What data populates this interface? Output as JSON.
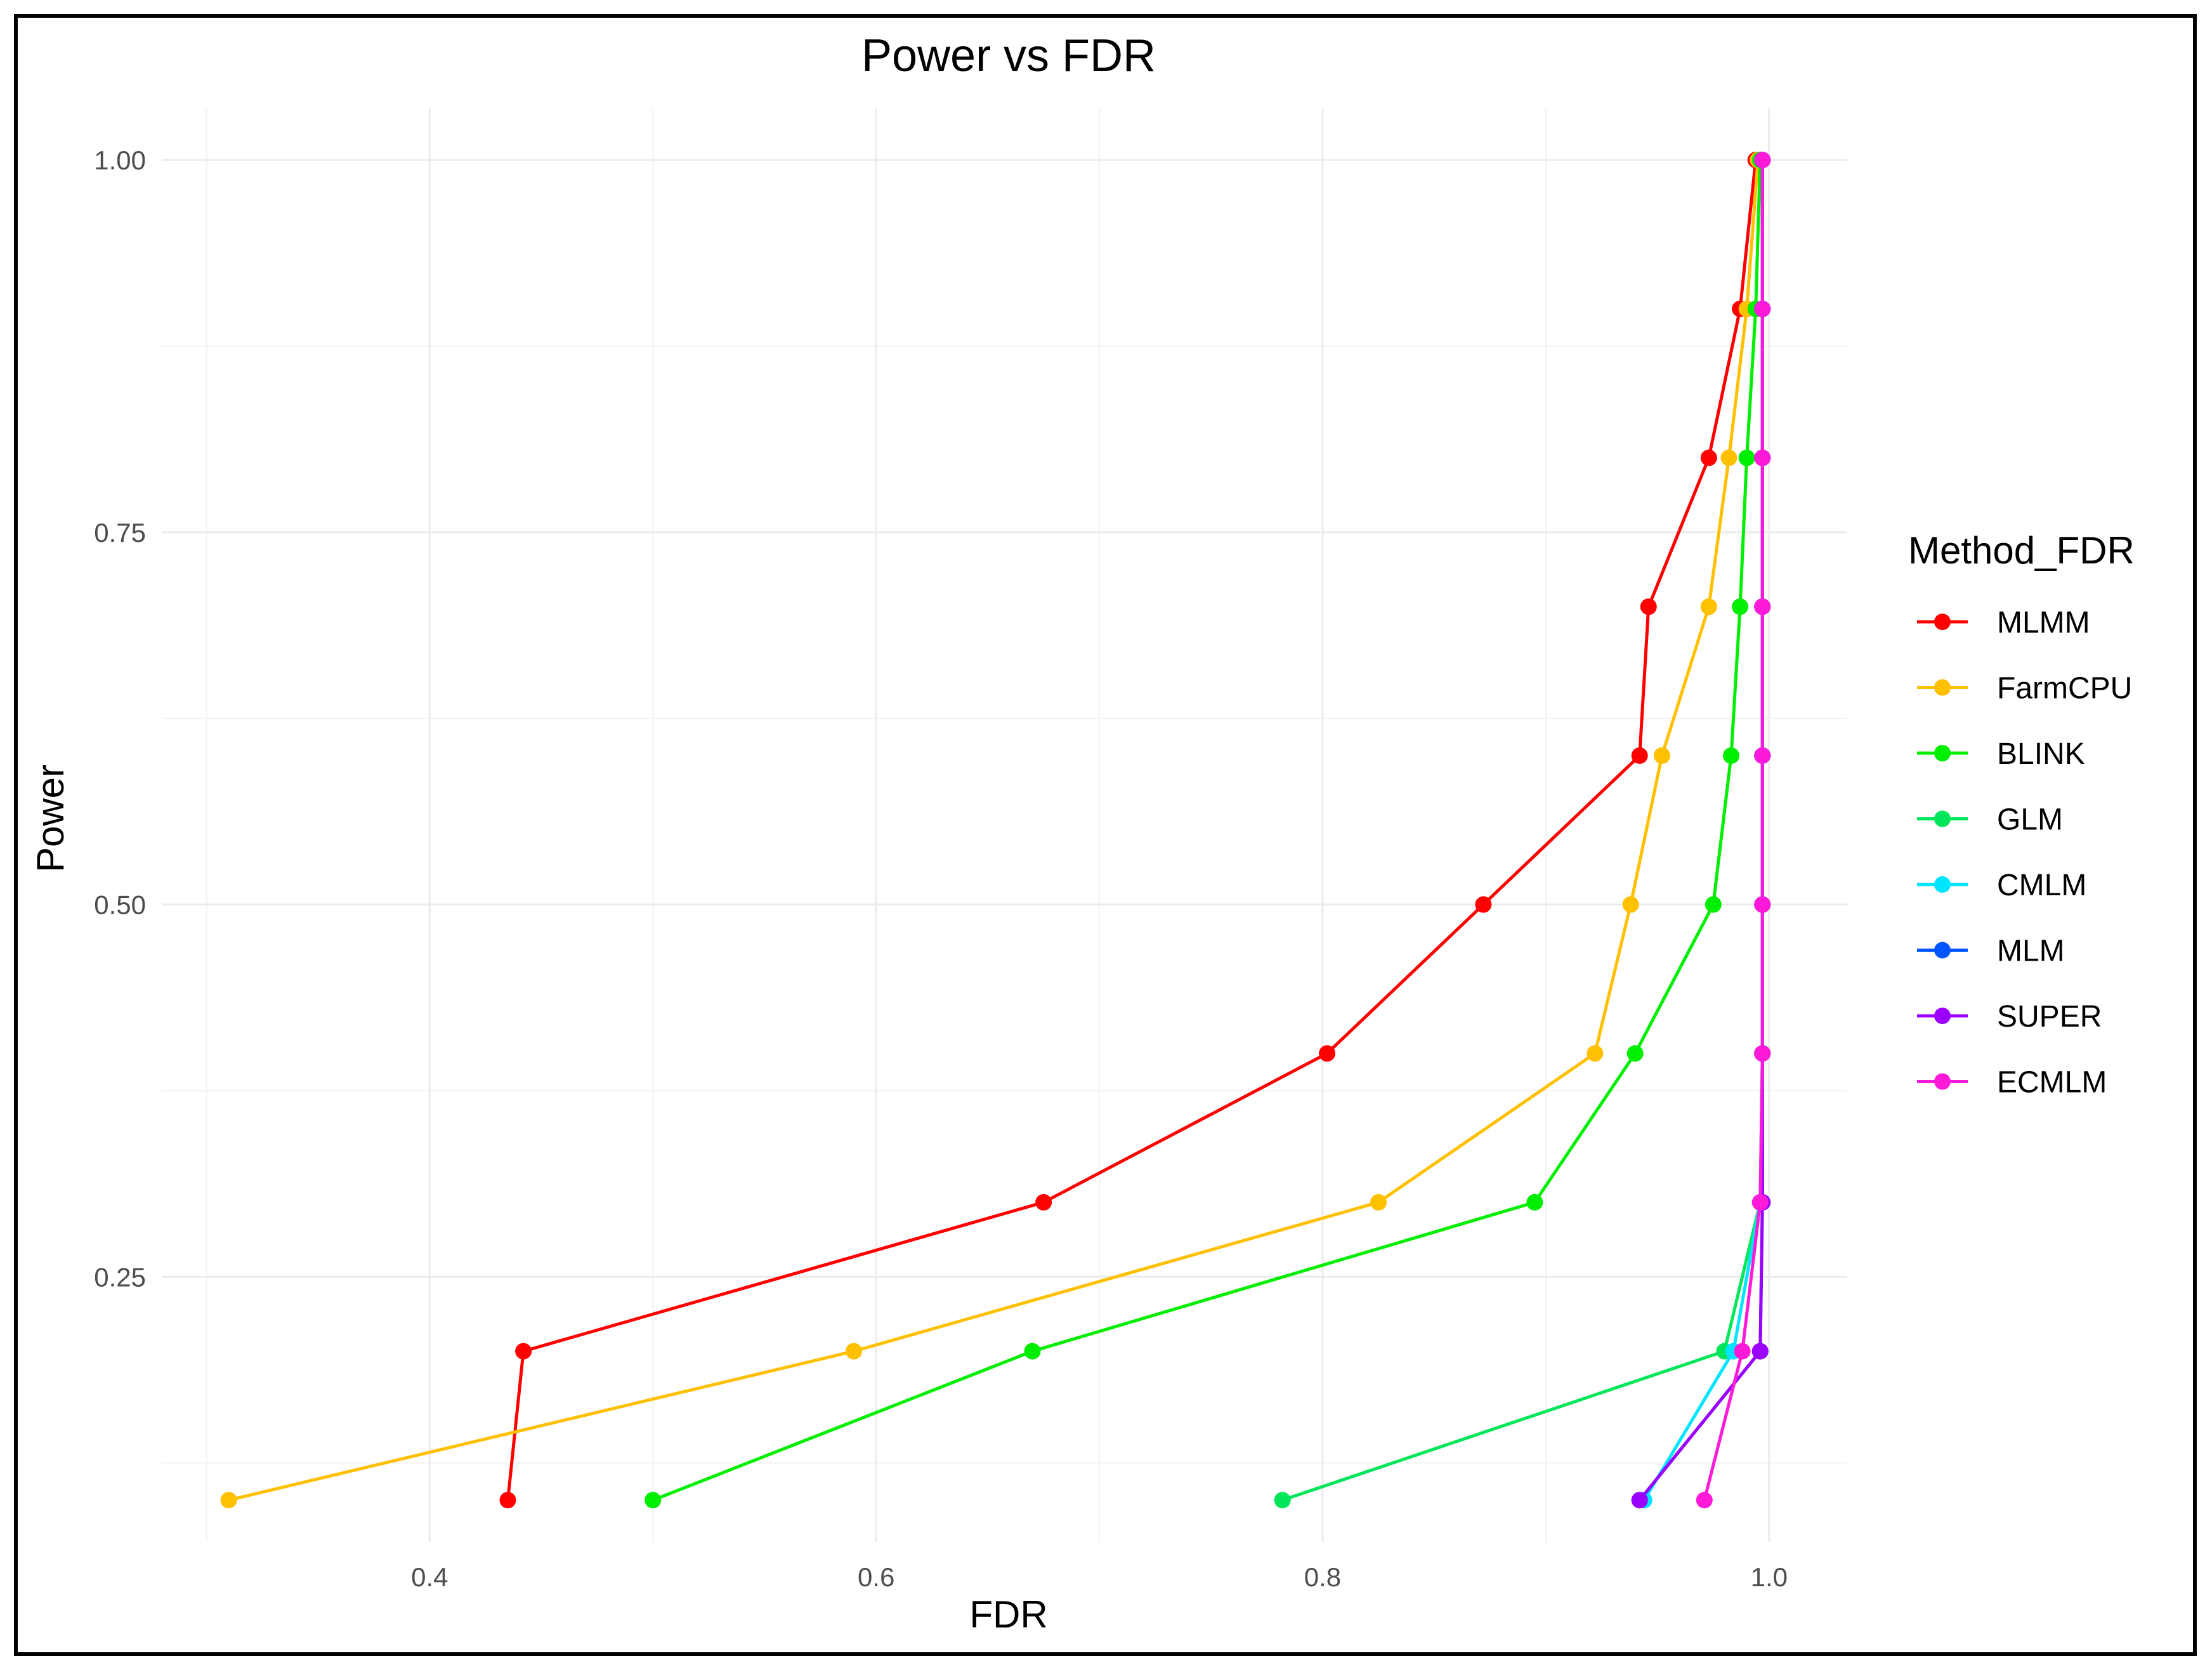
{
  "chart_data": {
    "type": "line",
    "title": "Power vs FDR",
    "xlabel": "FDR",
    "ylabel": "Power",
    "xlim": [
      0.28,
      1.035
    ],
    "ylim": [
      0.072,
      1.035
    ],
    "x_major_ticks": [
      0.4,
      0.6,
      0.8,
      1.0
    ],
    "x_minor_ticks": [
      0.3,
      0.5,
      0.7,
      0.9
    ],
    "y_major_ticks": [
      0.25,
      0.5,
      0.75,
      1.0
    ],
    "y_minor_ticks": [
      0.125,
      0.375,
      0.625,
      0.875
    ],
    "x_tick_labels": [
      "0.4",
      "0.6",
      "0.8",
      "1.0"
    ],
    "y_tick_labels": [
      "0.25",
      "0.50",
      "0.75",
      "1.00"
    ],
    "grid": true,
    "legend_position": "right",
    "legend_title": "Method_FDR",
    "series": [
      {
        "name": "MLMM",
        "color": "#ff0000",
        "x": [
          0.435,
          0.442,
          0.675,
          0.802,
          0.872,
          0.942,
          0.946,
          0.973,
          0.987,
          0.994
        ],
        "y": [
          0.1,
          0.2,
          0.3,
          0.4,
          0.5,
          0.6,
          0.7,
          0.8,
          0.9,
          1.0
        ]
      },
      {
        "name": "FarmCPU",
        "color": "#ffc000",
        "x": [
          0.31,
          0.59,
          0.825,
          0.922,
          0.938,
          0.952,
          0.973,
          0.982,
          0.99,
          0.995
        ],
        "y": [
          0.1,
          0.2,
          0.3,
          0.4,
          0.5,
          0.6,
          0.7,
          0.8,
          0.9,
          1.0
        ]
      },
      {
        "name": "BLINK",
        "color": "#00ee00",
        "x": [
          0.5,
          0.67,
          0.895,
          0.94,
          0.975,
          0.983,
          0.987,
          0.99,
          0.994,
          0.996
        ],
        "y": [
          0.1,
          0.2,
          0.3,
          0.4,
          0.5,
          0.6,
          0.7,
          0.8,
          0.9,
          1.0
        ]
      },
      {
        "name": "GLM",
        "color": "#00e65a",
        "x": [
          0.782,
          0.98,
          0.996,
          0.997,
          0.997,
          0.997,
          0.997,
          0.997,
          0.997,
          0.997
        ],
        "y": [
          0.1,
          0.2,
          0.3,
          0.4,
          0.5,
          0.6,
          0.7,
          0.8,
          0.9,
          1.0
        ]
      },
      {
        "name": "CMLM",
        "color": "#00e5ff",
        "x": [
          0.944,
          0.984,
          0.996,
          0.997,
          0.997,
          0.997,
          0.997,
          0.997,
          0.997,
          0.997
        ],
        "y": [
          0.1,
          0.2,
          0.3,
          0.4,
          0.5,
          0.6,
          0.7,
          0.8,
          0.9,
          1.0
        ]
      },
      {
        "name": "MLM",
        "color": "#0055ff",
        "x": [
          0.942,
          0.996,
          0.997,
          0.997,
          0.997,
          0.997,
          0.997,
          0.997,
          0.997,
          0.997
        ],
        "y": [
          0.1,
          0.2,
          0.3,
          0.4,
          0.5,
          0.6,
          0.7,
          0.8,
          0.9,
          1.0
        ]
      },
      {
        "name": "SUPER",
        "color": "#9b00ff",
        "x": [
          0.942,
          0.996,
          0.997,
          0.997,
          0.997,
          0.997,
          0.997,
          0.997,
          0.997,
          0.997
        ],
        "y": [
          0.1,
          0.2,
          0.3,
          0.4,
          0.5,
          0.6,
          0.7,
          0.8,
          0.9,
          1.0
        ]
      },
      {
        "name": "ECMLM",
        "color": "#ff1ad9",
        "x": [
          0.971,
          0.988,
          0.996,
          0.997,
          0.997,
          0.997,
          0.997,
          0.997,
          0.997,
          0.997
        ],
        "y": [
          0.1,
          0.2,
          0.3,
          0.4,
          0.5,
          0.6,
          0.7,
          0.8,
          0.9,
          1.0
        ]
      }
    ]
  }
}
